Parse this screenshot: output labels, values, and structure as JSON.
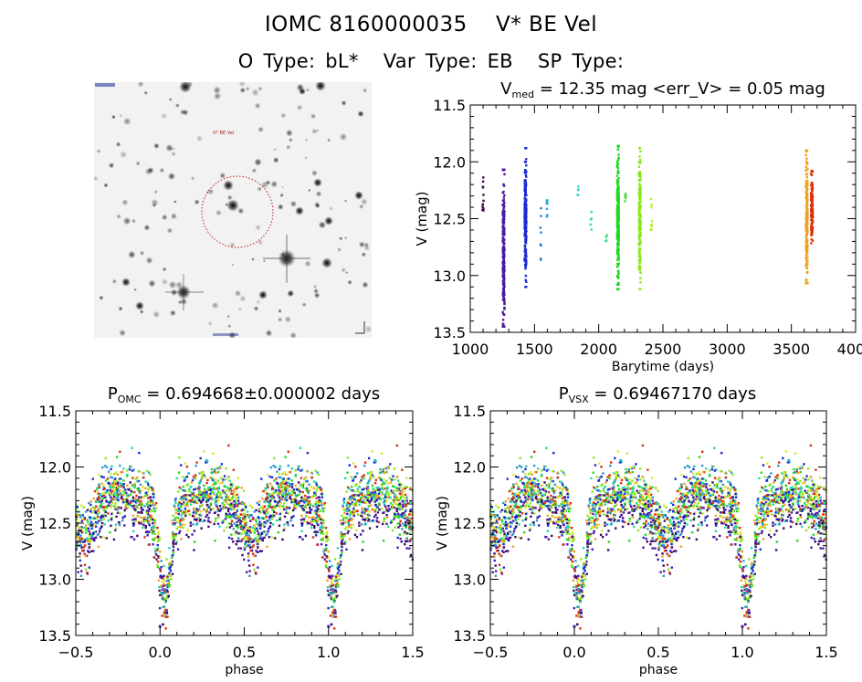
{
  "header": {
    "title": "IOMC 8160000035    V* BE Vel",
    "object_type_label": "O Type: bL*",
    "var_type_label": "Var Type: EB",
    "sp_type_label": "SP Type:"
  },
  "image_panel": {
    "description": "sky finder chart (inverted greyscale)",
    "target_label": "V* BE Vel",
    "marker": "red dotted circle around target"
  },
  "chart_data": [
    {
      "id": "light-curve-time",
      "type": "scatter",
      "title": "V_med = 12.35 mag <err_V> = 0.05 mag",
      "title_main": "V",
      "title_sub": "med",
      "title_rest": " = 12.35 mag <err_V> = 0.05 mag",
      "xlabel": "Barytime (days)",
      "ylabel": "V (mag)",
      "xlim": [
        1000,
        4000
      ],
      "ylim": [
        13.5,
        11.5
      ],
      "y_inverted": true,
      "xticks": [
        1000,
        1500,
        2000,
        2500,
        3000,
        3500,
        4000
      ],
      "yticks": [
        11.5,
        12.0,
        12.5,
        13.0,
        13.5
      ],
      "ytick_labels": [
        "11.5",
        "12.0",
        "12.5",
        "13.0",
        "13.5"
      ],
      "grid": false,
      "color_scale": "rainbow by time",
      "groups": [
        {
          "x": 1100,
          "ymin": 12.1,
          "ymax": 12.45,
          "color": "#3a0a4a",
          "n": 12
        },
        {
          "x": 1260,
          "ymin": 12.07,
          "ymax": 13.45,
          "color": "#4a1aa0",
          "n": 220
        },
        {
          "x": 1430,
          "ymin": 11.88,
          "ymax": 13.1,
          "color": "#1a2ad8",
          "n": 220
        },
        {
          "x": 1550,
          "ymin": 12.4,
          "ymax": 13.0,
          "color": "#2a7ac8",
          "n": 8
        },
        {
          "x": 1600,
          "ymin": 12.32,
          "ymax": 12.5,
          "color": "#2aa8d8",
          "n": 10
        },
        {
          "x": 1840,
          "ymin": 12.2,
          "ymax": 12.32,
          "color": "#3ad8d0",
          "n": 5
        },
        {
          "x": 1940,
          "ymin": 12.42,
          "ymax": 12.6,
          "color": "#3ad8a0",
          "n": 5
        },
        {
          "x": 2060,
          "ymin": 12.64,
          "ymax": 12.7,
          "color": "#3ad880",
          "n": 4
        },
        {
          "x": 2150,
          "ymin": 11.86,
          "ymax": 13.12,
          "color": "#22d822",
          "n": 260
        },
        {
          "x": 2210,
          "ymin": 12.28,
          "ymax": 12.35,
          "color": "#44d844",
          "n": 6
        },
        {
          "x": 2320,
          "ymin": 11.88,
          "ymax": 13.12,
          "color": "#88e81a",
          "n": 200
        },
        {
          "x": 2410,
          "ymin": 12.32,
          "ymax": 12.6,
          "color": "#c8e82a",
          "n": 10
        },
        {
          "x": 3620,
          "ymin": 11.9,
          "ymax": 13.07,
          "color": "#f0a020",
          "n": 180
        },
        {
          "x": 3660,
          "ymin": 12.08,
          "ymax": 12.72,
          "color": "#d83010",
          "n": 120
        }
      ]
    },
    {
      "id": "phase-omc",
      "type": "scatter",
      "title": "P_OMC = 0.694668±0.000002 days",
      "title_main": "P",
      "title_sub": "OMC",
      "title_rest": " = 0.694668±0.000002 days",
      "period_days": 0.694668,
      "period_err_days": 2e-06,
      "xlabel": "phase",
      "ylabel": "V (mag)",
      "xlim": [
        -0.5,
        1.5
      ],
      "ylim": [
        13.5,
        11.5
      ],
      "y_inverted": true,
      "xticks": [
        -0.5,
        0.0,
        0.5,
        1.0,
        1.5
      ],
      "xtick_labels": [
        "−0.5",
        "0.0",
        "0.5",
        "1.0",
        "1.5"
      ],
      "yticks": [
        11.5,
        12.0,
        12.5,
        13.0,
        13.5
      ],
      "ytick_labels": [
        "11.5",
        "12.0",
        "12.5",
        "13.0",
        "13.5"
      ],
      "light_curve": {
        "baseline_mag": 12.3,
        "primary_eclipse_phase": 0.03,
        "primary_min_mag": 13.1,
        "secondary_eclipse_phase": 0.55,
        "secondary_min_mag": 12.55,
        "scatter_mag": 0.15,
        "faint_outliers": [
          {
            "phase": 0.0,
            "mag": 13.42
          },
          {
            "phase": 0.04,
            "mag": 13.3
          },
          {
            "phase": 1.0,
            "mag": 13.42
          },
          {
            "phase": 1.04,
            "mag": 13.3
          }
        ]
      },
      "grid": false
    },
    {
      "id": "phase-vsx",
      "type": "scatter",
      "title": "P_VSX = 0.69467170 days",
      "title_main": "P",
      "title_sub": "VSX",
      "title_rest": " = 0.69467170 days",
      "period_days": 0.6946717,
      "xlabel": "phase",
      "ylabel": "V (mag)",
      "xlim": [
        -0.5,
        1.5
      ],
      "ylim": [
        13.5,
        11.5
      ],
      "y_inverted": true,
      "xticks": [
        -0.5,
        0.0,
        0.5,
        1.0,
        1.5
      ],
      "xtick_labels": [
        "−0.5",
        "0.0",
        "0.5",
        "1.0",
        "1.5"
      ],
      "yticks": [
        11.5,
        12.0,
        12.5,
        13.0,
        13.5
      ],
      "ytick_labels": [
        "11.5",
        "12.0",
        "12.5",
        "13.0",
        "13.5"
      ],
      "light_curve": {
        "baseline_mag": 12.3,
        "primary_eclipse_phase": 0.03,
        "primary_min_mag": 13.1,
        "secondary_eclipse_phase": 0.55,
        "secondary_min_mag": 12.55,
        "scatter_mag": 0.15,
        "faint_outliers": [
          {
            "phase": 0.0,
            "mag": 13.42
          },
          {
            "phase": 0.04,
            "mag": 13.3
          },
          {
            "phase": 1.0,
            "mag": 13.42
          },
          {
            "phase": 1.04,
            "mag": 13.3
          }
        ]
      },
      "grid": false
    }
  ],
  "palette": [
    "#3a0a6a",
    "#4a1aa0",
    "#1a2ad8",
    "#2a9ad0",
    "#22d8a0",
    "#22d822",
    "#88e81a",
    "#d8e82a",
    "#f0a020",
    "#d83010"
  ]
}
